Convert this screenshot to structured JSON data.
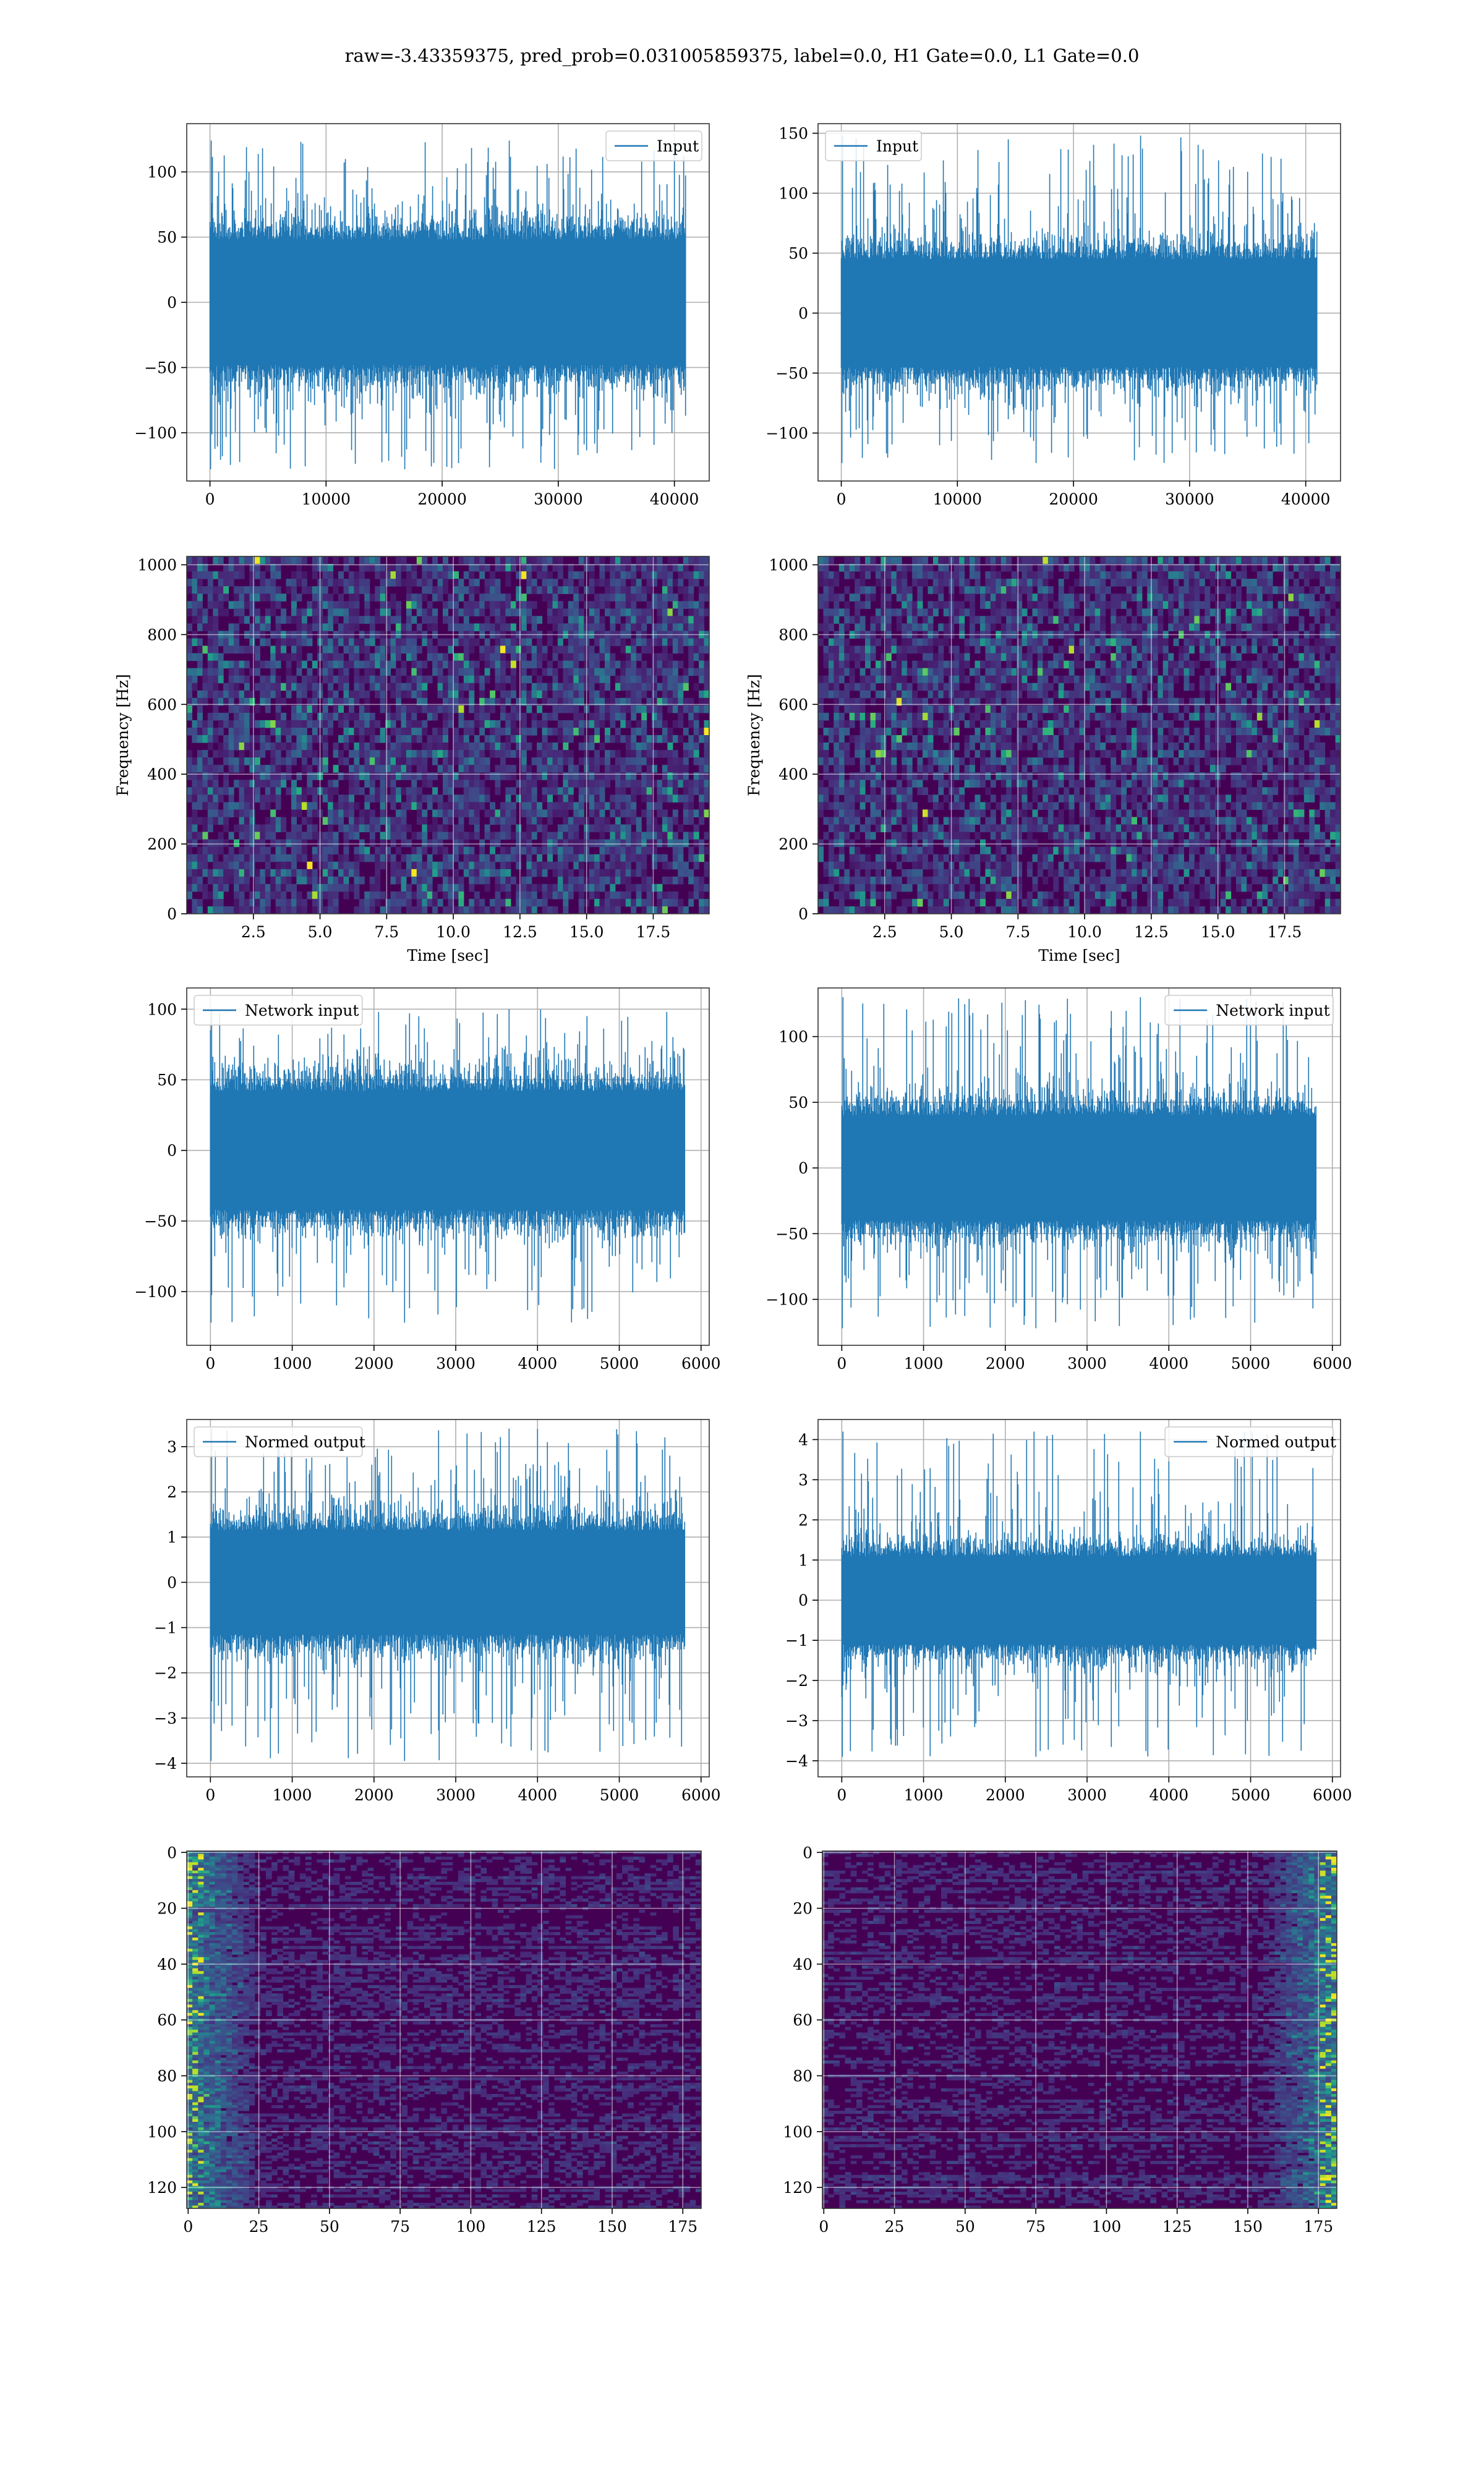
{
  "figure": {
    "suptitle": "raw=-3.43359375, pred_prob=0.031005859375, label=0.0, H1 Gate=0.0, L1 Gate=0.0"
  },
  "colors": {
    "line": "#1f77b4",
    "grid": "#b0b0b0",
    "viridis_low": "#440154",
    "viridis_mid": "#21918c",
    "viridis_high": "#fde725"
  },
  "chart_data": [
    {
      "id": "h1-input",
      "type": "line",
      "legend": {
        "label": "Input",
        "loc": "upper right"
      },
      "xlim": [
        -2000,
        43000
      ],
      "ylim": [
        -137,
        137
      ],
      "xticks": [
        0,
        10000,
        20000,
        30000,
        40000
      ],
      "xticklabels": [
        "0",
        "10000",
        "20000",
        "30000",
        "40000"
      ],
      "yticks": [
        -100,
        -50,
        0,
        50,
        100
      ],
      "yticklabels": [
        "−100",
        "−50",
        "0",
        "50",
        "100"
      ],
      "xlabel": "",
      "ylabel": "",
      "grid": true,
      "signal": {
        "n_samples": 40960,
        "x_range": [
          0,
          40960
        ],
        "core_amplitude": 48,
        "peak_max": 124,
        "peak_min": -128
      }
    },
    {
      "id": "l1-input",
      "type": "line",
      "legend": {
        "label": "Input",
        "loc": "upper left"
      },
      "xlim": [
        -2000,
        43000
      ],
      "ylim": [
        -140,
        158
      ],
      "xticks": [
        0,
        10000,
        20000,
        30000,
        40000
      ],
      "xticklabels": [
        "0",
        "10000",
        "20000",
        "30000",
        "40000"
      ],
      "yticks": [
        -100,
        -50,
        0,
        50,
        100,
        150
      ],
      "yticklabels": [
        "−100",
        "−50",
        "0",
        "50",
        "100",
        "150"
      ],
      "xlabel": "",
      "ylabel": "",
      "grid": true,
      "signal": {
        "n_samples": 40960,
        "x_range": [
          0,
          40960
        ],
        "core_amplitude": 45,
        "peak_max": 148,
        "peak_min": -125
      }
    },
    {
      "id": "h1-spectrogram",
      "type": "heatmap",
      "xlim": [
        0,
        19.6
      ],
      "ylim": [
        0,
        1024
      ],
      "xticks": [
        2.5,
        5.0,
        7.5,
        10.0,
        12.5,
        15.0,
        17.5
      ],
      "xticklabels": [
        "2.5",
        "5.0",
        "7.5",
        "10.0",
        "12.5",
        "15.0",
        "17.5"
      ],
      "yticks": [
        0,
        200,
        400,
        600,
        800,
        1000
      ],
      "yticklabels": [
        "0",
        "200",
        "400",
        "600",
        "800",
        "1000"
      ],
      "xlabel": "Time [sec]",
      "ylabel": "Frequency [Hz]",
      "grid": true,
      "colormap": "viridis"
    },
    {
      "id": "l1-spectrogram",
      "type": "heatmap",
      "xlim": [
        0,
        19.6
      ],
      "ylim": [
        0,
        1024
      ],
      "xticks": [
        2.5,
        5.0,
        7.5,
        10.0,
        12.5,
        15.0,
        17.5
      ],
      "xticklabels": [
        "2.5",
        "5.0",
        "7.5",
        "10.0",
        "12.5",
        "15.0",
        "17.5"
      ],
      "yticks": [
        0,
        200,
        400,
        600,
        800,
        1000
      ],
      "yticklabels": [
        "0",
        "200",
        "400",
        "600",
        "800",
        "1000"
      ],
      "xlabel": "Time [sec]",
      "ylabel": "Frequency [Hz]",
      "grid": true,
      "colormap": "viridis"
    },
    {
      "id": "h1-network-input",
      "type": "line",
      "legend": {
        "label": "Network input",
        "loc": "upper left"
      },
      "xlim": [
        -290,
        6100
      ],
      "ylim": [
        -138,
        115
      ],
      "xticks": [
        0,
        1000,
        2000,
        3000,
        4000,
        5000,
        6000
      ],
      "xticklabels": [
        "0",
        "1000",
        "2000",
        "3000",
        "4000",
        "5000",
        "6000"
      ],
      "yticks": [
        -100,
        -50,
        0,
        50,
        100
      ],
      "yticklabels": [
        "−100",
        "−50",
        "0",
        "50",
        "100"
      ],
      "xlabel": "",
      "ylabel": "",
      "grid": true,
      "signal": {
        "n_samples": 5800,
        "x_range": [
          0,
          5800
        ],
        "core_amplitude": 42,
        "peak_max": 100,
        "peak_min": -122
      }
    },
    {
      "id": "l1-network-input",
      "type": "line",
      "legend": {
        "label": "Network input",
        "loc": "upper right"
      },
      "xlim": [
        -290,
        6100
      ],
      "ylim": [
        -135,
        137
      ],
      "xticks": [
        0,
        1000,
        2000,
        3000,
        4000,
        5000,
        6000
      ],
      "xticklabels": [
        "0",
        "1000",
        "2000",
        "3000",
        "4000",
        "5000",
        "6000"
      ],
      "yticks": [
        -100,
        -50,
        0,
        50,
        100
      ],
      "yticklabels": [
        "−100",
        "−50",
        "0",
        "50",
        "100"
      ],
      "xlabel": "",
      "ylabel": "",
      "grid": true,
      "signal": {
        "n_samples": 5800,
        "x_range": [
          0,
          5800
        ],
        "core_amplitude": 40,
        "peak_max": 130,
        "peak_min": -122
      }
    },
    {
      "id": "h1-normed-output",
      "type": "line",
      "legend": {
        "label": "Normed output",
        "loc": "upper left"
      },
      "xlim": [
        -290,
        6100
      ],
      "ylim": [
        -4.3,
        3.6
      ],
      "xticks": [
        0,
        1000,
        2000,
        3000,
        4000,
        5000,
        6000
      ],
      "xticklabels": [
        "0",
        "1000",
        "2000",
        "3000",
        "4000",
        "5000",
        "6000"
      ],
      "yticks": [
        -4,
        -3,
        -2,
        -1,
        0,
        1,
        2,
        3
      ],
      "yticklabels": [
        "−4",
        "−3",
        "−2",
        "−1",
        "0",
        "1",
        "2",
        "3"
      ],
      "xlabel": "",
      "ylabel": "",
      "grid": true,
      "signal": {
        "n_samples": 5800,
        "x_range": [
          0,
          5800
        ],
        "core_amplitude": 1.15,
        "peak_max": 3.4,
        "peak_min": -3.95
      }
    },
    {
      "id": "l1-normed-output",
      "type": "line",
      "legend": {
        "label": "Normed output",
        "loc": "upper right"
      },
      "xlim": [
        -290,
        6100
      ],
      "ylim": [
        -4.4,
        4.5
      ],
      "xticks": [
        0,
        1000,
        2000,
        3000,
        4000,
        5000,
        6000
      ],
      "xticklabels": [
        "0",
        "1000",
        "2000",
        "3000",
        "4000",
        "5000",
        "6000"
      ],
      "yticks": [
        -4,
        -3,
        -2,
        -1,
        0,
        1,
        2,
        3,
        4
      ],
      "yticklabels": [
        "−4",
        "−3",
        "−2",
        "−1",
        "0",
        "1",
        "2",
        "3",
        "4"
      ],
      "xlabel": "",
      "ylabel": "",
      "grid": true,
      "signal": {
        "n_samples": 5800,
        "x_range": [
          0,
          5800
        ],
        "core_amplitude": 1.1,
        "peak_max": 4.2,
        "peak_min": -3.9
      }
    },
    {
      "id": "h1-feature-map",
      "type": "heatmap",
      "xlim": [
        -0.5,
        181.5
      ],
      "ylim": [
        127.5,
        -0.5
      ],
      "xticks": [
        0,
        25,
        50,
        75,
        100,
        125,
        150,
        175
      ],
      "xticklabels": [
        "0",
        "25",
        "50",
        "75",
        "100",
        "125",
        "150",
        "175"
      ],
      "yticks": [
        0,
        20,
        40,
        60,
        80,
        100,
        120
      ],
      "yticklabels": [
        "0",
        "20",
        "40",
        "60",
        "80",
        "100",
        "120"
      ],
      "xlabel": "",
      "ylabel": "",
      "grid": true,
      "colormap": "viridis",
      "bright_edge": "left"
    },
    {
      "id": "l1-feature-map",
      "type": "heatmap",
      "xlim": [
        -0.5,
        181.5
      ],
      "ylim": [
        127.5,
        -0.5
      ],
      "xticks": [
        0,
        25,
        50,
        75,
        100,
        125,
        150,
        175
      ],
      "xticklabels": [
        "0",
        "25",
        "50",
        "75",
        "100",
        "125",
        "150",
        "175"
      ],
      "yticks": [
        0,
        20,
        40,
        60,
        80,
        100,
        120
      ],
      "yticklabels": [
        "0",
        "20",
        "40",
        "60",
        "80",
        "100",
        "120"
      ],
      "xlabel": "",
      "ylabel": "",
      "grid": true,
      "colormap": "viridis",
      "bright_edge": "right"
    }
  ]
}
